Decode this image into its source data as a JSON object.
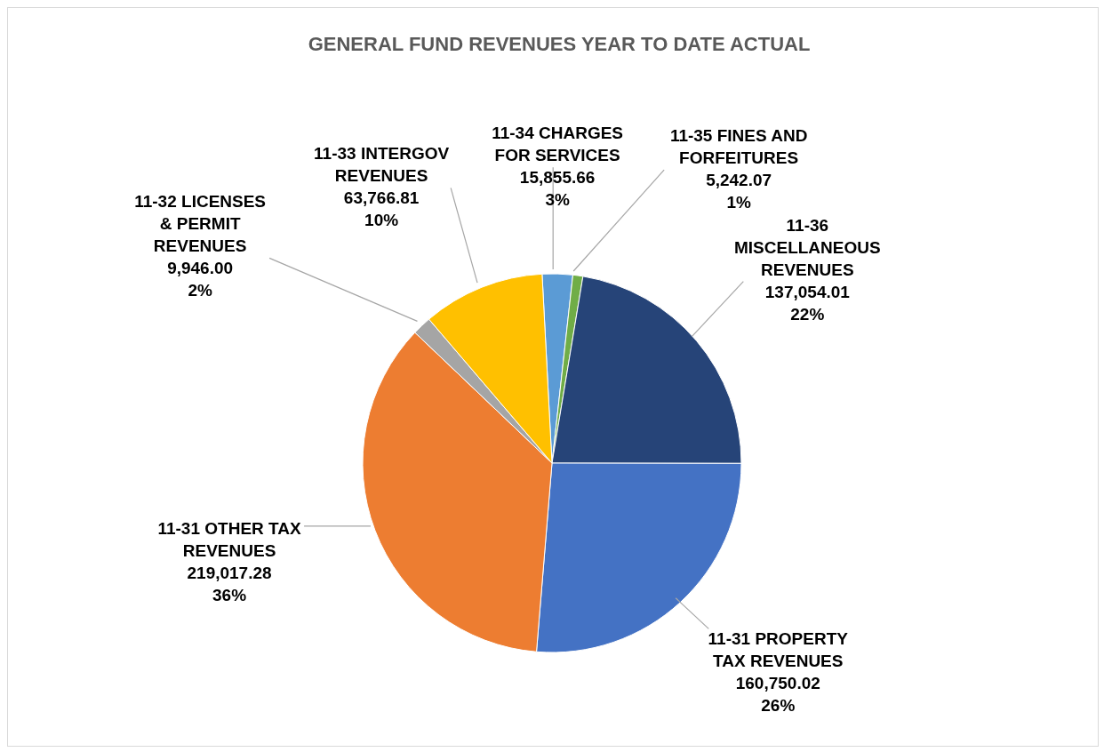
{
  "chart_data": {
    "type": "pie",
    "title": "GENERAL FUND REVENUES YEAR TO DATE ACTUAL",
    "categories": [
      "11-34 CHARGES FOR SERVICES",
      "11-35 FINES AND FORFEITURES",
      "11-36 MISCELLANEOUS REVENUES",
      "11-31 PROPERTY TAX REVENUES",
      "11-31 OTHER TAX REVENUES",
      "11-32 LICENSES & PERMIT REVENUES",
      "11-33 INTERGOV REVENUES"
    ],
    "values": [
      15855.66,
      5242.07,
      137054.01,
      160750.02,
      219017.28,
      9946.0,
      63766.81
    ],
    "value_labels": [
      "15,855.66 3%",
      "5,242.07 1%",
      "137,054.01 22%",
      "160,750.02 26%",
      "219,017.28 36%",
      "9,946.00 2%",
      "63,766.81 10%"
    ],
    "colors": [
      "#5b9bd5",
      "#70ad47",
      "#264478",
      "#4472c4",
      "#ed7d31",
      "#a5a5a5",
      "#ffc000"
    ],
    "legend": false
  }
}
